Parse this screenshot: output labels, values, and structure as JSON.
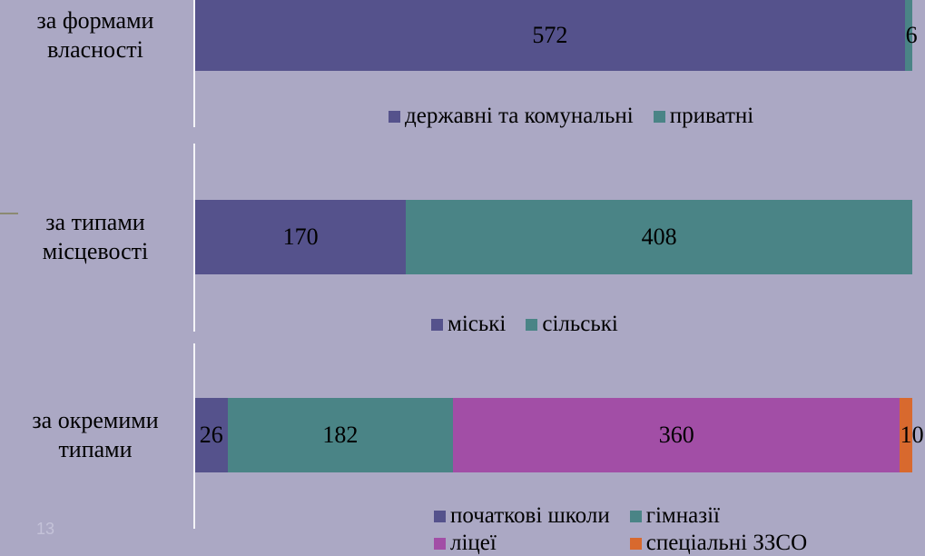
{
  "page_number": "13",
  "chart_data": [
    {
      "type": "bar",
      "orientation": "horizontal",
      "stacked": true,
      "categories": [
        "за формами власності"
      ],
      "series": [
        {
          "name": "державні та комунальні",
          "color": "#55528c",
          "values": [
            572
          ]
        },
        {
          "name": "приватні",
          "color": "#4a8486",
          "values": [
            6
          ]
        }
      ]
    },
    {
      "type": "bar",
      "orientation": "horizontal",
      "stacked": true,
      "categories": [
        "за типами місцевості"
      ],
      "series": [
        {
          "name": "міські",
          "color": "#55528c",
          "values": [
            170
          ]
        },
        {
          "name": "сільські",
          "color": "#4a8486",
          "values": [
            408
          ]
        }
      ]
    },
    {
      "type": "bar",
      "orientation": "horizontal",
      "stacked": true,
      "categories": [
        "за окремими типами"
      ],
      "series": [
        {
          "name": "початкові школи",
          "color": "#55528c",
          "values": [
            26
          ]
        },
        {
          "name": "гімназії",
          "color": "#4a8486",
          "values": [
            182
          ]
        },
        {
          "name": "ліцеї",
          "color": "#a24ea6",
          "values": [
            360
          ]
        },
        {
          "name": "спеціальні ЗЗСО",
          "color": "#d8692e",
          "values": [
            10
          ]
        }
      ]
    }
  ]
}
